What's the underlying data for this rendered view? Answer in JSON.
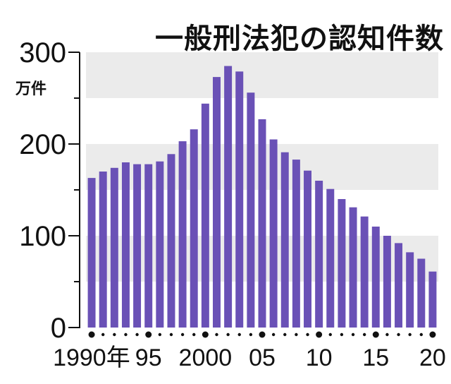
{
  "chart_data": {
    "type": "bar",
    "title": "一般刑法犯の認知件数",
    "ylabel": "万件",
    "ylim": [
      0,
      300
    ],
    "yticks": [
      "0",
      "100",
      "200",
      "300"
    ],
    "grid": "alternating horizontal bands every 50",
    "legend": "none",
    "x": [
      1990,
      1991,
      1992,
      1993,
      1994,
      1995,
      1996,
      1997,
      1998,
      1999,
      2000,
      2001,
      2002,
      2003,
      2004,
      2005,
      2006,
      2007,
      2008,
      2009,
      2010,
      2011,
      2012,
      2013,
      2014,
      2015,
      2016,
      2017,
      2018,
      2019,
      2020
    ],
    "xtick_labels": [
      {
        "year": 1990,
        "text": "1990年"
      },
      {
        "year": 1995,
        "text": "95"
      },
      {
        "year": 2000,
        "text": "2000"
      },
      {
        "year": 2005,
        "text": "05"
      },
      {
        "year": 2010,
        "text": "10"
      },
      {
        "year": 2015,
        "text": "15"
      },
      {
        "year": 2020,
        "text": "20"
      }
    ],
    "values": [
      163,
      170,
      174,
      180,
      178,
      178,
      181,
      189,
      203,
      216,
      244,
      273,
      285,
      279,
      256,
      227,
      205,
      191,
      183,
      171,
      160,
      151,
      140,
      131,
      121,
      110,
      100,
      92,
      82,
      75,
      61
    ],
    "colors": {
      "bar": "#6a51b6",
      "band": "#ebebeb",
      "axis": "#111111"
    }
  }
}
